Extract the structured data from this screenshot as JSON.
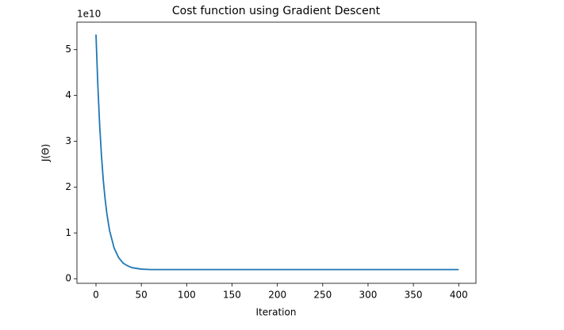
{
  "chart_data": {
    "type": "line",
    "title": "Cost function using Gradient Descent",
    "x_label": "Iteration",
    "y_label": "J(Θ)",
    "y_offset_label": "1e10",
    "series": [
      {
        "color": "#1f77b4",
        "x": [
          0,
          2,
          4,
          6,
          8,
          10,
          12,
          15,
          20,
          25,
          30,
          35,
          40,
          50,
          60,
          100,
          200,
          300,
          400
        ],
        "values": [
          5.33,
          4.24,
          3.37,
          2.7,
          2.16,
          1.75,
          1.42,
          1.05,
          0.67,
          0.46,
          0.34,
          0.28,
          0.24,
          0.21,
          0.2,
          0.2,
          0.2,
          0.2,
          0.2
        ]
      }
    ],
    "xlim": [
      -21,
      419
    ],
    "ylim": [
      -0.1,
      5.6
    ],
    "xticks": [
      0,
      50,
      100,
      150,
      200,
      250,
      300,
      350,
      400
    ],
    "yticks": [
      0,
      1,
      2,
      3,
      4,
      5
    ],
    "grid": false
  }
}
